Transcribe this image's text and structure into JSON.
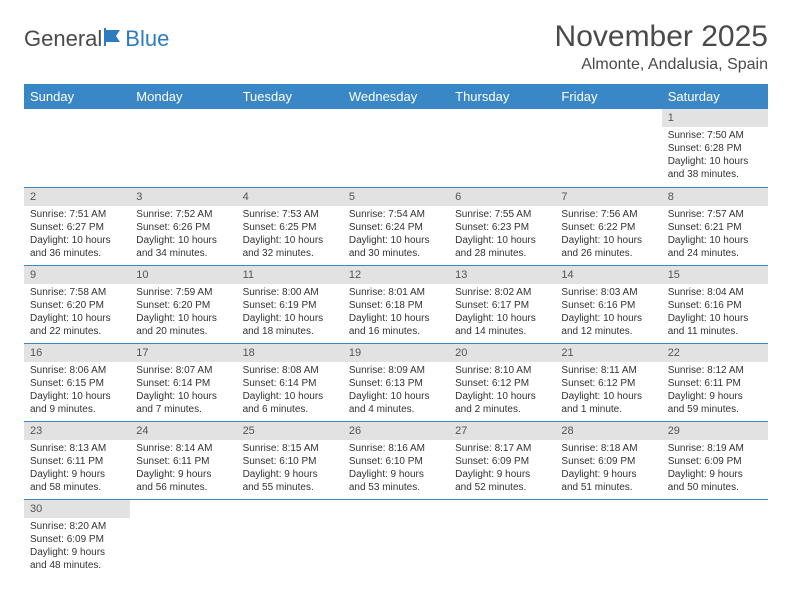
{
  "logo": {
    "text_general": "General",
    "text_blue": "Blue"
  },
  "colors": {
    "header_bg": "#3a87c8",
    "header_text": "#ffffff",
    "daynum_bg": "#e2e2e2",
    "row_border": "#3a87c8",
    "logo_blue": "#2d7cc1",
    "body_text": "#333333"
  },
  "title": {
    "month": "November 2025",
    "location": "Almonte, Andalusia, Spain"
  },
  "weekdays": [
    "Sunday",
    "Monday",
    "Tuesday",
    "Wednesday",
    "Thursday",
    "Friday",
    "Saturday"
  ],
  "weeks": [
    [
      null,
      null,
      null,
      null,
      null,
      null,
      {
        "n": "1",
        "sr": "Sunrise: 7:50 AM",
        "ss": "Sunset: 6:28 PM",
        "dl": "Daylight: 10 hours and 38 minutes."
      }
    ],
    [
      {
        "n": "2",
        "sr": "Sunrise: 7:51 AM",
        "ss": "Sunset: 6:27 PM",
        "dl": "Daylight: 10 hours and 36 minutes."
      },
      {
        "n": "3",
        "sr": "Sunrise: 7:52 AM",
        "ss": "Sunset: 6:26 PM",
        "dl": "Daylight: 10 hours and 34 minutes."
      },
      {
        "n": "4",
        "sr": "Sunrise: 7:53 AM",
        "ss": "Sunset: 6:25 PM",
        "dl": "Daylight: 10 hours and 32 minutes."
      },
      {
        "n": "5",
        "sr": "Sunrise: 7:54 AM",
        "ss": "Sunset: 6:24 PM",
        "dl": "Daylight: 10 hours and 30 minutes."
      },
      {
        "n": "6",
        "sr": "Sunrise: 7:55 AM",
        "ss": "Sunset: 6:23 PM",
        "dl": "Daylight: 10 hours and 28 minutes."
      },
      {
        "n": "7",
        "sr": "Sunrise: 7:56 AM",
        "ss": "Sunset: 6:22 PM",
        "dl": "Daylight: 10 hours and 26 minutes."
      },
      {
        "n": "8",
        "sr": "Sunrise: 7:57 AM",
        "ss": "Sunset: 6:21 PM",
        "dl": "Daylight: 10 hours and 24 minutes."
      }
    ],
    [
      {
        "n": "9",
        "sr": "Sunrise: 7:58 AM",
        "ss": "Sunset: 6:20 PM",
        "dl": "Daylight: 10 hours and 22 minutes."
      },
      {
        "n": "10",
        "sr": "Sunrise: 7:59 AM",
        "ss": "Sunset: 6:20 PM",
        "dl": "Daylight: 10 hours and 20 minutes."
      },
      {
        "n": "11",
        "sr": "Sunrise: 8:00 AM",
        "ss": "Sunset: 6:19 PM",
        "dl": "Daylight: 10 hours and 18 minutes."
      },
      {
        "n": "12",
        "sr": "Sunrise: 8:01 AM",
        "ss": "Sunset: 6:18 PM",
        "dl": "Daylight: 10 hours and 16 minutes."
      },
      {
        "n": "13",
        "sr": "Sunrise: 8:02 AM",
        "ss": "Sunset: 6:17 PM",
        "dl": "Daylight: 10 hours and 14 minutes."
      },
      {
        "n": "14",
        "sr": "Sunrise: 8:03 AM",
        "ss": "Sunset: 6:16 PM",
        "dl": "Daylight: 10 hours and 12 minutes."
      },
      {
        "n": "15",
        "sr": "Sunrise: 8:04 AM",
        "ss": "Sunset: 6:16 PM",
        "dl": "Daylight: 10 hours and 11 minutes."
      }
    ],
    [
      {
        "n": "16",
        "sr": "Sunrise: 8:06 AM",
        "ss": "Sunset: 6:15 PM",
        "dl": "Daylight: 10 hours and 9 minutes."
      },
      {
        "n": "17",
        "sr": "Sunrise: 8:07 AM",
        "ss": "Sunset: 6:14 PM",
        "dl": "Daylight: 10 hours and 7 minutes."
      },
      {
        "n": "18",
        "sr": "Sunrise: 8:08 AM",
        "ss": "Sunset: 6:14 PM",
        "dl": "Daylight: 10 hours and 6 minutes."
      },
      {
        "n": "19",
        "sr": "Sunrise: 8:09 AM",
        "ss": "Sunset: 6:13 PM",
        "dl": "Daylight: 10 hours and 4 minutes."
      },
      {
        "n": "20",
        "sr": "Sunrise: 8:10 AM",
        "ss": "Sunset: 6:12 PM",
        "dl": "Daylight: 10 hours and 2 minutes."
      },
      {
        "n": "21",
        "sr": "Sunrise: 8:11 AM",
        "ss": "Sunset: 6:12 PM",
        "dl": "Daylight: 10 hours and 1 minute."
      },
      {
        "n": "22",
        "sr": "Sunrise: 8:12 AM",
        "ss": "Sunset: 6:11 PM",
        "dl": "Daylight: 9 hours and 59 minutes."
      }
    ],
    [
      {
        "n": "23",
        "sr": "Sunrise: 8:13 AM",
        "ss": "Sunset: 6:11 PM",
        "dl": "Daylight: 9 hours and 58 minutes."
      },
      {
        "n": "24",
        "sr": "Sunrise: 8:14 AM",
        "ss": "Sunset: 6:11 PM",
        "dl": "Daylight: 9 hours and 56 minutes."
      },
      {
        "n": "25",
        "sr": "Sunrise: 8:15 AM",
        "ss": "Sunset: 6:10 PM",
        "dl": "Daylight: 9 hours and 55 minutes."
      },
      {
        "n": "26",
        "sr": "Sunrise: 8:16 AM",
        "ss": "Sunset: 6:10 PM",
        "dl": "Daylight: 9 hours and 53 minutes."
      },
      {
        "n": "27",
        "sr": "Sunrise: 8:17 AM",
        "ss": "Sunset: 6:09 PM",
        "dl": "Daylight: 9 hours and 52 minutes."
      },
      {
        "n": "28",
        "sr": "Sunrise: 8:18 AM",
        "ss": "Sunset: 6:09 PM",
        "dl": "Daylight: 9 hours and 51 minutes."
      },
      {
        "n": "29",
        "sr": "Sunrise: 8:19 AM",
        "ss": "Sunset: 6:09 PM",
        "dl": "Daylight: 9 hours and 50 minutes."
      }
    ],
    [
      {
        "n": "30",
        "sr": "Sunrise: 8:20 AM",
        "ss": "Sunset: 6:09 PM",
        "dl": "Daylight: 9 hours and 48 minutes."
      },
      null,
      null,
      null,
      null,
      null,
      null
    ]
  ]
}
